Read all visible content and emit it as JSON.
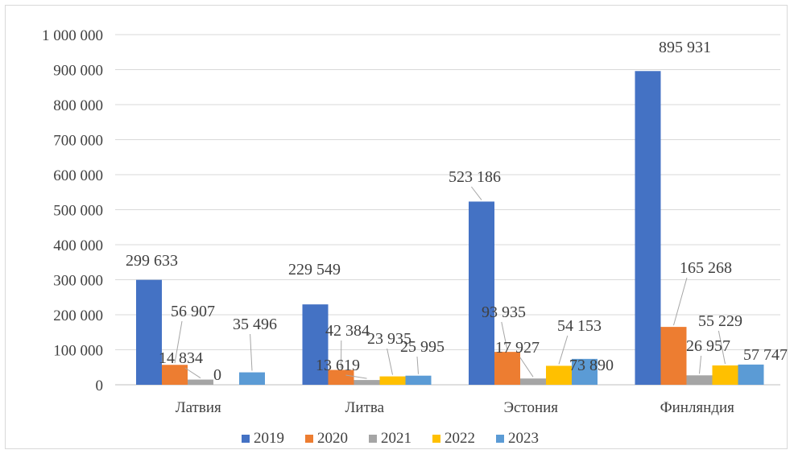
{
  "chart_data": {
    "type": "bar",
    "title": "",
    "xlabel": "",
    "ylabel": "",
    "ylim": [
      0,
      1000000
    ],
    "y_ticks": [
      "0",
      "100 000",
      "200 000",
      "300 000",
      "400 000",
      "500 000",
      "600 000",
      "700 000",
      "800 000",
      "900 000",
      "1 000 000"
    ],
    "grid": true,
    "legend_position": "bottom",
    "categories": [
      "Латвия",
      "Литва",
      "Эстония",
      "Финляндия"
    ],
    "series": [
      {
        "name": "2019",
        "color": "#4472c4",
        "values": [
          299633,
          229549,
          523186,
          895931
        ],
        "labels": [
          "299 633",
          "229 549",
          "523 186",
          "895 931"
        ]
      },
      {
        "name": "2020",
        "color": "#ed7d31",
        "values": [
          56907,
          42384,
          93935,
          165268
        ],
        "labels": [
          "56 907",
          "42 384",
          "93 935",
          "165 268"
        ]
      },
      {
        "name": "2021",
        "color": "#a5a5a5",
        "values": [
          14834,
          13619,
          17927,
          26957
        ],
        "labels": [
          "14 834",
          "13 619",
          "17 927",
          "26 957"
        ]
      },
      {
        "name": "2022",
        "color": "#ffc000",
        "values": [
          0,
          23935,
          54153,
          55229
        ],
        "labels": [
          "0",
          "23 935",
          "54 153",
          "55 229"
        ]
      },
      {
        "name": "2023",
        "color": "#5b9bd5",
        "values": [
          35496,
          25995,
          73890,
          57747
        ],
        "labels": [
          "35 496",
          "25 995",
          "73 890",
          "57 747"
        ]
      }
    ]
  }
}
